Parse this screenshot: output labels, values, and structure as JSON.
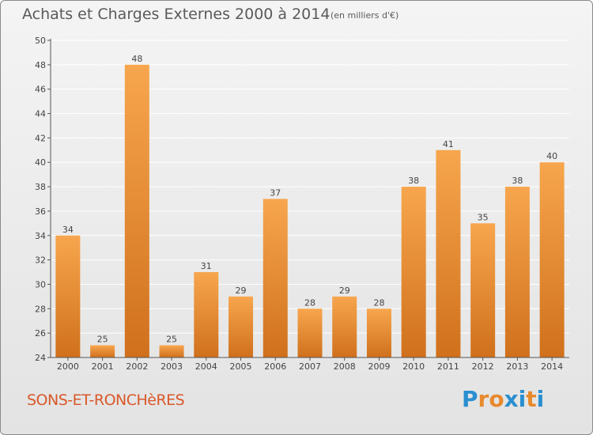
{
  "title": "Achats et Charges Externes 2000 à 2014",
  "unit": "(en milliers d'€)",
  "place": "SONS-ET-RONCHèRES",
  "logo": {
    "letters": [
      "P",
      "r",
      "o",
      "x",
      "i",
      "t",
      "i"
    ],
    "colors": [
      "#2a8fd0",
      "#e8892c",
      "#e8892c",
      "#2a8fd0",
      "#2a8fd0",
      "#e8892c",
      "#2a8fd0"
    ]
  },
  "colors": {
    "bar_light": "#f7a64e",
    "bar_dark": "#d0701c",
    "grid": "#ffffff",
    "axis": "#555555",
    "text": "#444444"
  },
  "chart_data": {
    "type": "bar",
    "categories": [
      "2000",
      "2001",
      "2002",
      "2003",
      "2004",
      "2005",
      "2006",
      "2007",
      "2008",
      "2009",
      "2010",
      "2011",
      "2012",
      "2013",
      "2014"
    ],
    "values": [
      34,
      25,
      48,
      25,
      31,
      29,
      37,
      28,
      29,
      28,
      38,
      41,
      35,
      38,
      40
    ],
    "yticks": [
      24,
      26,
      28,
      30,
      32,
      34,
      36,
      38,
      40,
      42,
      44,
      46,
      48,
      50
    ],
    "ylim": [
      24,
      50
    ],
    "grid": true,
    "data_labels": true
  }
}
